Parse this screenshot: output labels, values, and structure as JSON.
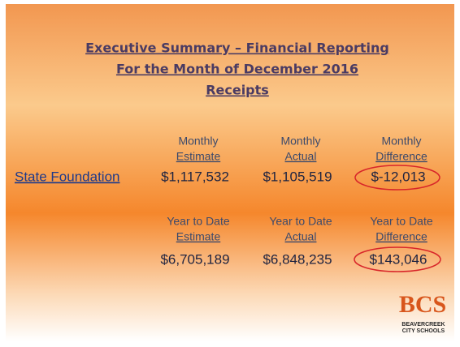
{
  "title": [
    "Executive Summary – Financial Reporting",
    "For the Month of December 2016",
    "Receipts"
  ],
  "monthly": {
    "headers": [
      [
        "Monthly",
        "Estimate"
      ],
      [
        "Monthly",
        "Actual"
      ],
      [
        "Monthly",
        "Difference"
      ]
    ],
    "row_label": "State Foundation",
    "values": [
      "$1,117,532",
      "$1,105,519",
      "$-12,013"
    ]
  },
  "year_to_date": {
    "headers": [
      [
        "Year to Date",
        "Estimate"
      ],
      [
        "Year to Date",
        "Actual"
      ],
      [
        "Year to Date",
        "Difference"
      ]
    ],
    "values": [
      "$6,705,189",
      "$6,848,235",
      "$143,046"
    ]
  },
  "logo": {
    "mark": "BCS",
    "line1": "BEAVERCREEK",
    "line2": "CITY SCHOOLS"
  }
}
